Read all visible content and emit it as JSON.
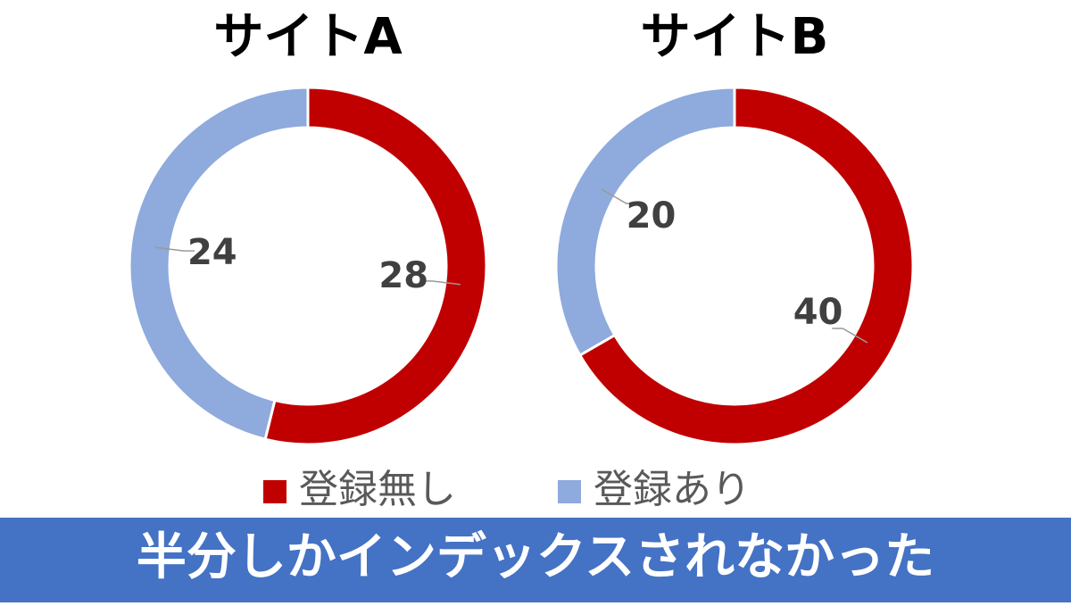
{
  "chart_data": [
    {
      "type": "donut",
      "title": "サイトA",
      "categories": [
        "登録無し",
        "登録あり"
      ],
      "values": [
        28,
        24
      ],
      "colors": [
        "#c00000",
        "#8faadc"
      ]
    },
    {
      "type": "donut",
      "title": "サイトB",
      "categories": [
        "登録無し",
        "登録あり"
      ],
      "values": [
        40,
        20
      ],
      "colors": [
        "#c00000",
        "#8faadc"
      ]
    }
  ],
  "banner": "半分しかインデックスされなかった"
}
